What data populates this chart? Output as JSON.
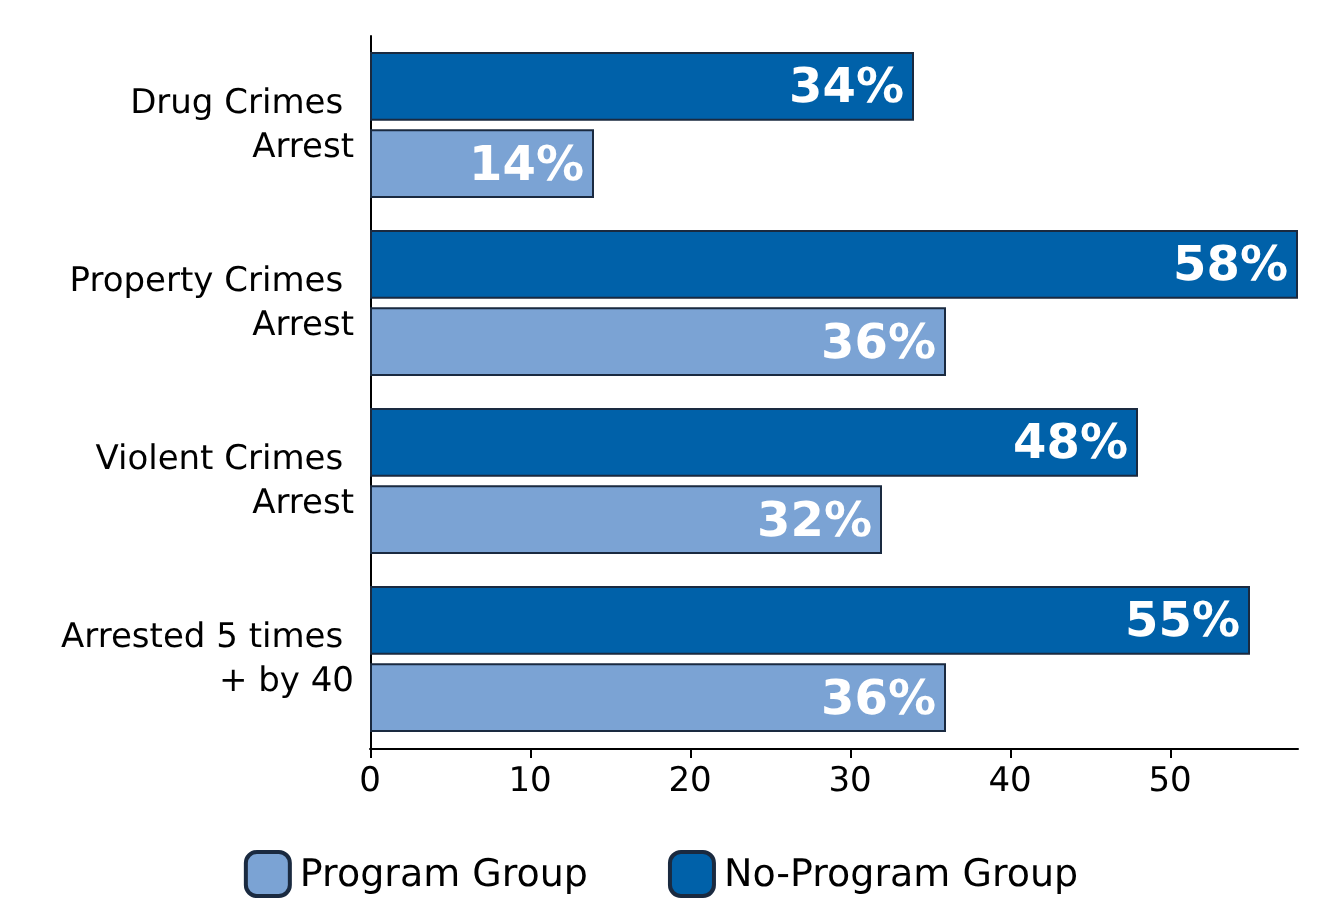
{
  "chart_data": {
    "type": "bar",
    "orientation": "horizontal",
    "categories": [
      "Drug Crimes Arrest",
      "Property Crimes Arrest",
      "Violent Crimes Arrest",
      "Arrested 5 times + by 40"
    ],
    "series": [
      {
        "name": "Program Group",
        "color": "#7ba3d4",
        "values": [
          14,
          36,
          32,
          36
        ],
        "value_labels": [
          "14%",
          "36%",
          "32%",
          "36%"
        ]
      },
      {
        "name": "No-Program Group",
        "color": "#0061a9",
        "values": [
          34,
          58,
          48,
          55
        ],
        "value_labels": [
          "34%",
          "58%",
          "48%",
          "55%"
        ]
      }
    ],
    "xlim": [
      0,
      58
    ],
    "xticks": [
      0,
      10,
      20,
      30,
      40,
      50
    ],
    "grid": false,
    "legend": "bottom"
  }
}
